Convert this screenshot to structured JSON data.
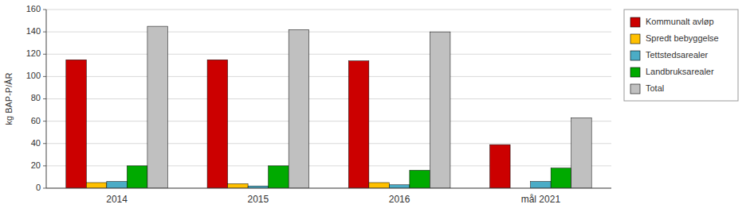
{
  "chart_data": {
    "type": "bar",
    "categories": [
      "2014",
      "2015",
      "2016",
      "mål 2021"
    ],
    "series": [
      {
        "name": "Kommunalt avløp",
        "color": "#CC0000",
        "values": [
          115,
          115,
          114,
          39
        ]
      },
      {
        "name": "Spredt bebyggelse",
        "color": "#FFC000",
        "values": [
          5,
          4,
          5,
          0
        ]
      },
      {
        "name": "Tettstedsarealer",
        "color": "#4BACC6",
        "values": [
          6,
          2,
          3,
          6
        ]
      },
      {
        "name": "Landbruksarealer",
        "color": "#00AA00",
        "values": [
          20,
          20,
          16,
          18
        ]
      },
      {
        "name": "Total",
        "color": "#C0C0C0",
        "values": [
          145,
          142,
          140,
          63
        ]
      }
    ],
    "ylabel": "kg BAP-P/ÅR",
    "ylim": [
      0,
      160
    ],
    "yticks": [
      0,
      20,
      40,
      60,
      80,
      100,
      120,
      140,
      160
    ],
    "grid": true,
    "legend": "right"
  }
}
